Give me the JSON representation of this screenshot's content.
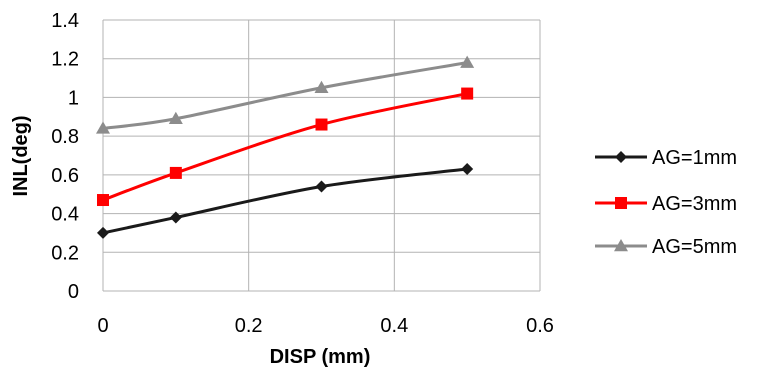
{
  "chart_data": {
    "type": "line",
    "title": "",
    "xlabel": "DISP (mm)",
    "ylabel": "INL(deg)",
    "xlim": [
      0,
      0.6
    ],
    "ylim": [
      0,
      1.4
    ],
    "x_ticks": [
      "0",
      "0.2",
      "0.4",
      "0.6"
    ],
    "y_ticks": [
      "0",
      "0.2",
      "0.4",
      "0.6",
      "0.8",
      "1",
      "1.2",
      "1.4"
    ],
    "grid": true,
    "legend_position": "right",
    "series": [
      {
        "name": "AG=1mm",
        "color": "#1a1a1a",
        "marker": "diamond",
        "x": [
          0,
          0.1,
          0.3,
          0.5
        ],
        "y": [
          0.3,
          0.38,
          0.54,
          0.63
        ]
      },
      {
        "name": "AG=3mm",
        "color": "#ff0000",
        "marker": "square",
        "x": [
          0,
          0.1,
          0.3,
          0.5
        ],
        "y": [
          0.47,
          0.61,
          0.86,
          1.02
        ]
      },
      {
        "name": "AG=5mm",
        "color": "#8c8c8c",
        "marker": "triangle",
        "x": [
          0,
          0.1,
          0.3,
          0.5
        ],
        "y": [
          0.84,
          0.89,
          1.05,
          1.18
        ]
      }
    ]
  }
}
